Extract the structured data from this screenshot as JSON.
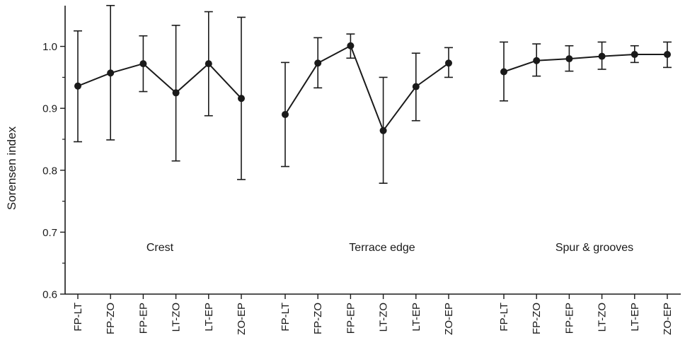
{
  "chart_data": {
    "type": "line",
    "ylabel": "Sorensen index",
    "ylim": [
      0.6,
      1.05
    ],
    "y_ticks": [
      0.6,
      0.7,
      0.8,
      0.9,
      1.0
    ],
    "y_tick_labels": [
      "0.6",
      "0.7",
      "0.8",
      "0.9",
      "1.0"
    ],
    "line_color": "#1a1a1a",
    "groups": [
      {
        "name": "Crest",
        "categories": [
          "FP-LT",
          "FP-ZO",
          "FP-EP",
          "LT-ZO",
          "LT-EP",
          "ZO-EP"
        ],
        "values": [
          0.936,
          0.957,
          0.972,
          0.925,
          0.972,
          0.916
        ],
        "err_low": [
          0.846,
          0.849,
          0.927,
          0.815,
          0.888,
          0.785
        ],
        "err_high": [
          1.025,
          1.066,
          1.017,
          1.034,
          1.056,
          1.047
        ]
      },
      {
        "name": "Terrace edge",
        "categories": [
          "FP-LT",
          "FP-ZO",
          "FP-EP",
          "LT-ZO",
          "LT-EP",
          "ZO-EP"
        ],
        "values": [
          0.89,
          0.973,
          1.001,
          0.864,
          0.935,
          0.973
        ],
        "err_low": [
          0.806,
          0.933,
          0.981,
          0.779,
          0.88,
          0.95
        ],
        "err_high": [
          0.974,
          1.014,
          1.02,
          0.95,
          0.989,
          0.998
        ]
      },
      {
        "name": "Spur & grooves",
        "categories": [
          "FP-LT",
          "FP-ZO",
          "FP-EP",
          "LT-ZO",
          "LT-EP",
          "ZO-EP"
        ],
        "values": [
          0.959,
          0.977,
          0.98,
          0.984,
          0.987,
          0.987
        ],
        "err_low": [
          0.912,
          0.952,
          0.96,
          0.963,
          0.974,
          0.966
        ],
        "err_high": [
          1.007,
          1.004,
          1.001,
          1.007,
          1.001,
          1.007
        ]
      }
    ]
  }
}
